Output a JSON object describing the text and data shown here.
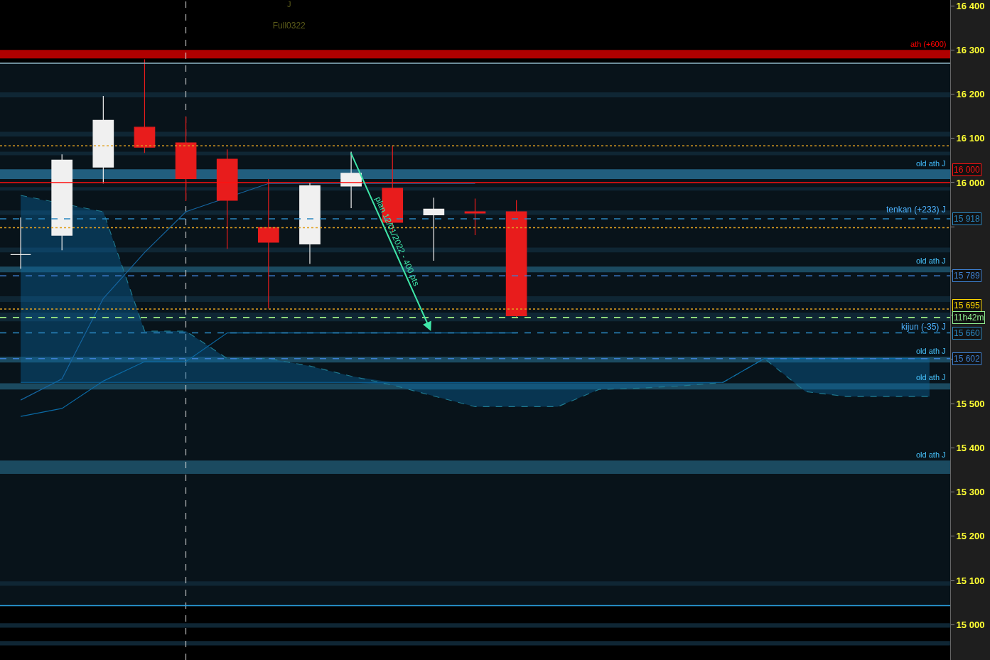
{
  "chart_data": {
    "type": "candlestick",
    "title": "J",
    "subtitle": "Full0322",
    "categories": [
      null,
      null,
      null,
      null,
      null,
      null,
      null,
      null,
      null,
      null,
      null,
      null,
      null,
      null,
      null,
      null,
      null,
      null,
      null,
      null,
      null,
      null,
      null
    ],
    "ohlc": [
      [
        15837,
        15921,
        15805,
        15837
      ],
      [
        15881,
        16064,
        15847,
        16051
      ],
      [
        16035,
        16196,
        15998,
        16141
      ],
      [
        16125,
        16279,
        16067,
        16080
      ],
      [
        16090,
        16149,
        15958,
        16009
      ],
      [
        16053,
        16075,
        15850,
        15960
      ],
      [
        15898,
        16008,
        15715,
        15865
      ],
      [
        15861,
        16000,
        15816,
        15993
      ],
      [
        15992,
        16070,
        15942,
        16021
      ],
      [
        15987,
        16083,
        15887,
        15910
      ],
      [
        15927,
        15966,
        15823,
        15940
      ],
      [
        15934,
        15964,
        15881,
        15931
      ],
      [
        15934,
        15960,
        15694,
        15699
      ],
      null,
      null,
      null,
      null,
      null,
      null,
      null,
      null,
      null,
      null
    ],
    "colors": [
      "#f0f0f0",
      "#f0f0f0",
      "#f0f0f0",
      "#e81c1c",
      "#e81c1c",
      "#e81c1c",
      "#e81c1c",
      "#f0f0f0",
      "#f0f0f0",
      "#e81c1c",
      "#f0f0f0",
      "#e81c1c",
      "#e81c1c",
      null,
      null,
      null,
      null,
      null,
      null,
      null,
      null,
      null,
      null
    ],
    "series": [
      {
        "type": "line",
        "color": "#1565a0",
        "values": [
          15508,
          15556,
          15738,
          15842,
          15934,
          null,
          15998,
          15998,
          null,
          15998,
          15998,
          15998,
          null,
          null,
          null,
          null,
          null,
          null,
          null,
          null,
          null,
          null,
          null
        ]
      },
      {
        "type": "line",
        "color": "#0b6aa5",
        "values": [
          15471,
          15489,
          15551,
          15595,
          15595,
          15660,
          15660,
          15660,
          15660,
          15660,
          15660,
          15660,
          15660,
          null,
          null,
          null,
          null,
          null,
          null,
          null,
          null,
          null,
          null
        ]
      },
      {
        "type": "line",
        "color": "#1f7a90",
        "line_style": "dashed",
        "values": [
          15971,
          null,
          15934,
          15664,
          15664,
          15602,
          15602,
          15585,
          15562,
          15542,
          15517,
          15493,
          15493,
          15493,
          15532,
          15535,
          15540,
          15548,
          15602,
          15527,
          15516,
          15516,
          15516
        ]
      },
      {
        "type": "line",
        "color": "#0b6aa5",
        "values": [
          15548,
          15548,
          15548,
          15548,
          15548,
          15548,
          15548,
          15548,
          15548,
          15548,
          15548,
          15548,
          15548,
          15548,
          15548,
          15548,
          15548,
          15548,
          15602,
          15602,
          15602,
          15602,
          15602
        ],
        "lower": [
          15548,
          15548,
          15548,
          15548,
          15548,
          15548,
          15548,
          15548,
          15548,
          15542,
          15517,
          15493,
          15493,
          15493,
          15532,
          15535,
          15540,
          15548,
          15602,
          15527,
          15516,
          15516,
          15516
        ],
        "upper": [
          15971,
          15951,
          15934,
          15664,
          15664,
          15602,
          15602,
          15585,
          15562,
          15548,
          15548,
          15548,
          15548,
          15548,
          15548,
          15548,
          15548,
          15548,
          15602,
          15602,
          15602,
          15602,
          15602
        ]
      }
    ],
    "ylim": [
      14920,
      16413
    ],
    "yticks": [
      {
        "value": 15000,
        "label": "15 000"
      },
      {
        "value": 15100,
        "label": "15 100"
      },
      {
        "value": 15200,
        "label": "15 200"
      },
      {
        "value": 15300,
        "label": "15 300"
      },
      {
        "value": 15400,
        "label": "15 400"
      },
      {
        "value": 15500,
        "label": "15 500"
      },
      {
        "value": 15600,
        "label": null
      },
      {
        "value": 15700,
        "label": null
      },
      {
        "value": 15800,
        "label": null
      },
      {
        "value": 15900,
        "label": null
      },
      {
        "value": 16000,
        "label": "16 000"
      },
      {
        "value": 16100,
        "label": "16 100"
      },
      {
        "value": 16200,
        "label": "16 200"
      },
      {
        "value": 16300,
        "label": "16 300"
      },
      {
        "value": 16400,
        "label": "16 400"
      }
    ],
    "tick_labels": "y",
    "grid": false,
    "bands": [
      {
        "axis": "y",
        "from": 15043,
        "to": 16270,
        "color": "#08131a"
      },
      {
        "axis": "y",
        "from": 16281,
        "to": 16300,
        "color": "#b00000",
        "label": "ath (+600)"
      },
      {
        "axis": "y",
        "from": 16193,
        "to": 16204,
        "color": "#0f2634"
      },
      {
        "axis": "y",
        "from": 16104,
        "to": 16115,
        "color": "#0f2634"
      },
      {
        "axis": "y",
        "from": 16062,
        "to": 16070,
        "color": "#0f2634"
      },
      {
        "axis": "y",
        "from": 16008,
        "to": 16030,
        "color": "#215e7e",
        "label": "old ath J"
      },
      {
        "axis": "y",
        "from": 15982,
        "to": 15990,
        "color": "#0f2634"
      },
      {
        "axis": "y",
        "from": 15927,
        "to": 15937,
        "color": "#0f2634"
      },
      {
        "axis": "y",
        "from": 15842,
        "to": 15853,
        "color": "#0f2634"
      },
      {
        "axis": "y",
        "from": 15797,
        "to": 15810,
        "color": "#1b4a60",
        "label": "old ath J"
      },
      {
        "axis": "y",
        "from": 15730,
        "to": 15743,
        "color": "#0f2634"
      },
      {
        "axis": "y",
        "from": 15686,
        "to": 15706,
        "color": "#0f2634"
      },
      {
        "axis": "y",
        "from": 15593,
        "to": 15606,
        "color": "#1b4a60",
        "label": "old ath J"
      },
      {
        "axis": "y",
        "from": 15532,
        "to": 15546,
        "color": "#1b4a60",
        "label": "old ath J"
      },
      {
        "axis": "y",
        "from": 15341,
        "to": 15371,
        "color": "#1b4a60",
        "label": "old ath J"
      },
      {
        "axis": "y",
        "from": 15088,
        "to": 15098,
        "color": "#0f2634"
      },
      {
        "axis": "y",
        "from": 14993,
        "to": 15003,
        "color": "#0f2634"
      },
      {
        "axis": "y",
        "from": 14953,
        "to": 14963,
        "color": "#0f2634"
      }
    ],
    "ref_lines": [
      {
        "axis": "y",
        "value": 16270,
        "color": "#8fb8c8",
        "line_style": "solid"
      },
      {
        "axis": "y",
        "value": 15043,
        "color": "#2aa0e0",
        "line_style": "solid"
      },
      {
        "axis": "y",
        "value": 16083,
        "color": "#e0a020",
        "line_style": "dotted"
      },
      {
        "axis": "y",
        "value": 15898,
        "color": "#e0a020",
        "line_style": "dotted"
      },
      {
        "axis": "y",
        "value": 15714,
        "color": "#e0a020",
        "line_style": "dotted"
      },
      {
        "axis": "y",
        "value": 16000,
        "label": "16 000",
        "color": "#ff1010",
        "line_style": "solid"
      },
      {
        "axis": "y",
        "value": 15918,
        "label": "15 918",
        "color": "#2a86c0",
        "line_style": "dashed"
      },
      {
        "axis": "y",
        "value": 15789,
        "label": "15 789",
        "color": "#3d7fd0",
        "line_style": "dashed"
      },
      {
        "axis": "y",
        "value": 15695,
        "label": "15 695",
        "color": "#ffd700",
        "line_style": "dashed"
      },
      {
        "axis": "y",
        "value": 15695,
        "label": "11h42m",
        "color": "#90ee90",
        "line_style": "dashed"
      },
      {
        "axis": "y",
        "value": 15660,
        "label": "15 660",
        "color": "#2a86c0",
        "line_style": "dashed"
      },
      {
        "axis": "y",
        "value": 15602,
        "label": "15 602",
        "color": "#3d7fd0",
        "line_style": "dashed"
      }
    ],
    "annotations": [
      {
        "text": "tenkan (+233) J",
        "y": 15925
      },
      {
        "text": "kijun (-35) J",
        "y": 15660
      },
      "plan 12/01/2022 - 400 pts"
    ]
  }
}
